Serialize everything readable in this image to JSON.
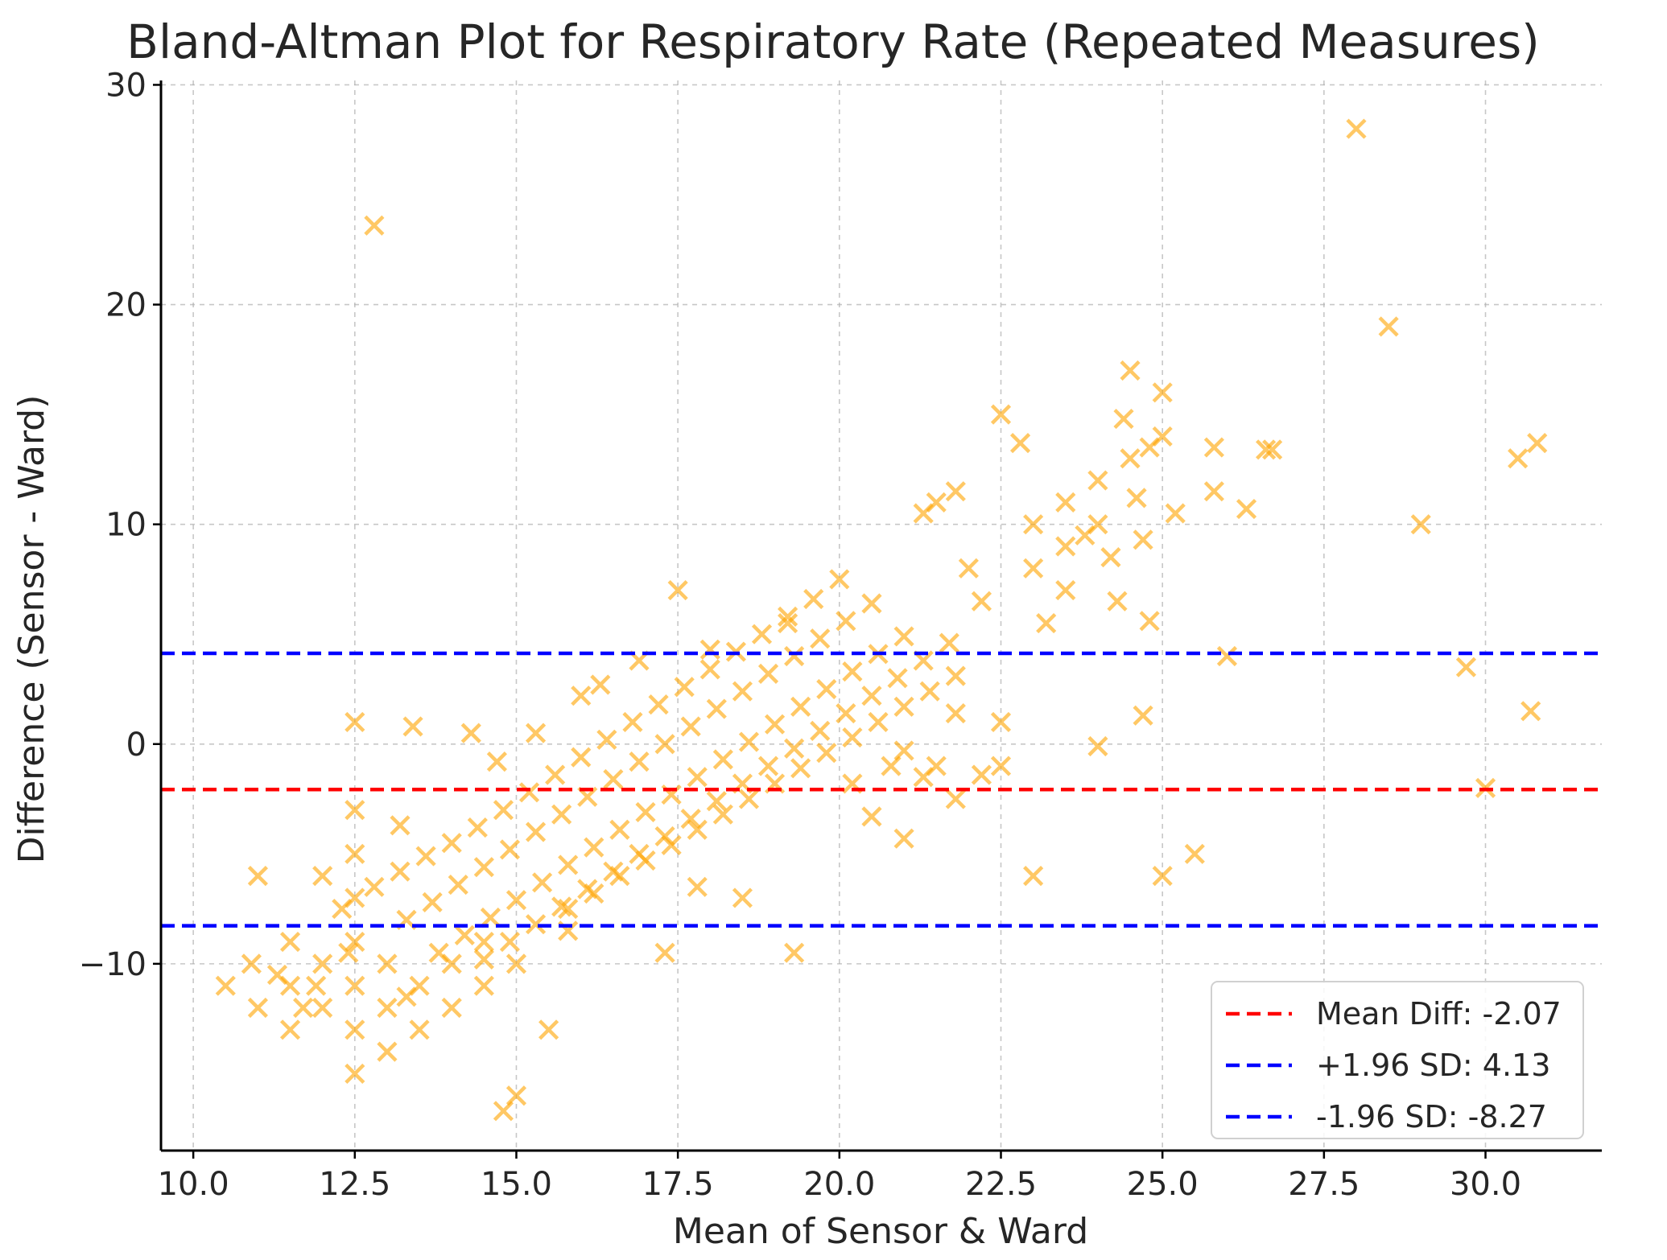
{
  "chart_data": {
    "type": "scatter",
    "title": "Bland-Altman Plot for Respiratory Rate (Repeated Measures)",
    "xlabel": "Mean of Sensor & Ward",
    "ylabel": "Difference (Sensor - Ward)",
    "xlim": [
      9.5,
      31.8
    ],
    "ylim": [
      -18.5,
      30.2
    ],
    "x_ticks": [
      10.0,
      12.5,
      15.0,
      17.5,
      20.0,
      22.5,
      25.0,
      27.5,
      30.0
    ],
    "x_tick_labels": [
      "10.0",
      "12.5",
      "15.0",
      "17.5",
      "20.0",
      "22.5",
      "25.0",
      "27.5",
      "30.0"
    ],
    "y_ticks": [
      -10,
      0,
      10,
      20,
      30
    ],
    "y_tick_labels": [
      "−10",
      "0",
      "10",
      "20",
      "30"
    ],
    "grid": true,
    "marker": "x",
    "marker_color": "#FFA500",
    "reference_lines": [
      {
        "name": "mean-diff",
        "label": "Mean Diff: -2.07",
        "value": -2.07,
        "color": "#ff0000"
      },
      {
        "name": "upper-loa",
        "label": "+1.96 SD: 4.13",
        "value": 4.13,
        "color": "#0000ff"
      },
      {
        "name": "lower-loa",
        "label": "-1.96 SD: -8.27",
        "value": -8.27,
        "color": "#0000ff"
      }
    ],
    "legend_position": "lower-right",
    "scatter_points": [
      [
        10.5,
        -11
      ],
      [
        10.9,
        -10
      ],
      [
        11,
        -6
      ],
      [
        11,
        -12
      ],
      [
        11.3,
        -10.5
      ],
      [
        11.5,
        -9
      ],
      [
        11.5,
        -11
      ],
      [
        11.5,
        -13
      ],
      [
        11.7,
        -12
      ],
      [
        11.9,
        -11
      ],
      [
        12,
        -6
      ],
      [
        12,
        -10
      ],
      [
        12,
        -12
      ],
      [
        12.3,
        -7.5
      ],
      [
        12.4,
        -9.5
      ],
      [
        12.5,
        1
      ],
      [
        12.5,
        -3
      ],
      [
        12.5,
        -5
      ],
      [
        12.5,
        -7
      ],
      [
        12.5,
        -9
      ],
      [
        12.5,
        -11
      ],
      [
        12.5,
        -13
      ],
      [
        12.5,
        -15
      ],
      [
        12.8,
        23.6
      ],
      [
        13,
        -10
      ],
      [
        13,
        -12
      ],
      [
        13,
        -14
      ],
      [
        13.2,
        -3.7
      ],
      [
        13.3,
        -11.5
      ],
      [
        13.4,
        0.8
      ],
      [
        13.5,
        -11
      ],
      [
        13.5,
        -13
      ],
      [
        14,
        -10
      ],
      [
        14,
        -12
      ],
      [
        14.3,
        0.5
      ],
      [
        14.5,
        -9
      ],
      [
        14.5,
        -11
      ],
      [
        14.7,
        -0.8
      ],
      [
        14.8,
        -16.7
      ],
      [
        15,
        -10
      ],
      [
        15,
        -16
      ],
      [
        15.3,
        0.5
      ],
      [
        15.5,
        -13
      ],
      [
        15.8,
        -8.5
      ],
      [
        17.3,
        -9.5
      ],
      [
        17.5,
        7
      ],
      [
        17.8,
        -6.5
      ],
      [
        18.5,
        -7
      ],
      [
        19.3,
        -9.5
      ],
      [
        16,
        2.2
      ],
      [
        16.3,
        2.7
      ],
      [
        16.9,
        3.8
      ],
      [
        18,
        4.3
      ],
      [
        19.2,
        5.5
      ],
      [
        12.8,
        -6.5
      ],
      [
        13.2,
        -5.8
      ],
      [
        13.6,
        -5.1
      ],
      [
        14,
        -4.5
      ],
      [
        14.4,
        -3.8
      ],
      [
        14.8,
        -3
      ],
      [
        15.2,
        -2.2
      ],
      [
        15.6,
        -1.4
      ],
      [
        16,
        -0.6
      ],
      [
        16.4,
        0.2
      ],
      [
        16.8,
        1
      ],
      [
        17.2,
        1.8
      ],
      [
        17.6,
        2.6
      ],
      [
        18,
        3.4
      ],
      [
        18.4,
        4.2
      ],
      [
        18.8,
        5
      ],
      [
        19.2,
        5.8
      ],
      [
        19.6,
        6.6
      ],
      [
        20,
        7.5
      ],
      [
        13.3,
        -8
      ],
      [
        13.7,
        -7.2
      ],
      [
        14.1,
        -6.4
      ],
      [
        14.5,
        -5.6
      ],
      [
        14.9,
        -4.8
      ],
      [
        15.3,
        -4
      ],
      [
        15.7,
        -3.2
      ],
      [
        16.1,
        -2.4
      ],
      [
        16.5,
        -1.6
      ],
      [
        16.9,
        -0.8
      ],
      [
        17.3,
        0
      ],
      [
        17.7,
        0.8
      ],
      [
        18.1,
        1.6
      ],
      [
        18.5,
        2.4
      ],
      [
        18.9,
        3.2
      ],
      [
        19.3,
        4
      ],
      [
        19.7,
        4.8
      ],
      [
        20.1,
        5.6
      ],
      [
        20.5,
        6.4
      ],
      [
        13.8,
        -9.5
      ],
      [
        14.2,
        -8.7
      ],
      [
        14.6,
        -7.9
      ],
      [
        15,
        -7.1
      ],
      [
        15.4,
        -6.3
      ],
      [
        15.8,
        -5.5
      ],
      [
        16.2,
        -4.7
      ],
      [
        16.6,
        -3.9
      ],
      [
        17,
        -3.1
      ],
      [
        17.4,
        -2.3
      ],
      [
        17.8,
        -1.5
      ],
      [
        18.2,
        -0.7
      ],
      [
        18.6,
        0.1
      ],
      [
        19,
        0.9
      ],
      [
        19.4,
        1.7
      ],
      [
        19.8,
        2.5
      ],
      [
        20.2,
        3.3
      ],
      [
        20.6,
        4.1
      ],
      [
        21,
        4.9
      ],
      [
        14.5,
        -9.8
      ],
      [
        14.9,
        -9
      ],
      [
        15.3,
        -8.2
      ],
      [
        15.7,
        -7.4
      ],
      [
        16.1,
        -6.6
      ],
      [
        16.5,
        -5.8
      ],
      [
        16.9,
        -5
      ],
      [
        17.3,
        -4.2
      ],
      [
        17.7,
        -3.4
      ],
      [
        18.1,
        -2.6
      ],
      [
        18.5,
        -1.8
      ],
      [
        18.9,
        -1
      ],
      [
        19.3,
        -0.2
      ],
      [
        19.7,
        0.6
      ],
      [
        20.1,
        1.4
      ],
      [
        20.5,
        2.2
      ],
      [
        20.9,
        3
      ],
      [
        21.3,
        3.8
      ],
      [
        21.7,
        4.6
      ],
      [
        15.8,
        -7.5
      ],
      [
        16.2,
        -6.8
      ],
      [
        16.6,
        -6
      ],
      [
        17,
        -5.3
      ],
      [
        17.4,
        -4.6
      ],
      [
        17.8,
        -3.9
      ],
      [
        18.2,
        -3.2
      ],
      [
        18.6,
        -2.5
      ],
      [
        19,
        -1.8
      ],
      [
        19.4,
        -1.1
      ],
      [
        19.8,
        -0.4
      ],
      [
        20.2,
        0.3
      ],
      [
        20.6,
        1
      ],
      [
        21,
        1.7
      ],
      [
        21.4,
        2.4
      ],
      [
        21.8,
        3.1
      ],
      [
        21.3,
        10.5
      ],
      [
        21.5,
        11
      ],
      [
        21.8,
        11.5
      ],
      [
        22,
        8
      ],
      [
        22.2,
        6.5
      ],
      [
        22.5,
        15
      ],
      [
        22.5,
        1
      ],
      [
        22.5,
        -1
      ],
      [
        22.8,
        13.7
      ],
      [
        23,
        10
      ],
      [
        23,
        8
      ],
      [
        23,
        -6
      ],
      [
        23.2,
        5.5
      ],
      [
        23.5,
        11
      ],
      [
        23.5,
        9
      ],
      [
        23.5,
        7
      ],
      [
        23.8,
        9.5
      ],
      [
        24,
        10
      ],
      [
        24,
        12
      ],
      [
        24,
        -0.1
      ],
      [
        24.2,
        8.5
      ],
      [
        24.3,
        6.5
      ],
      [
        24.4,
        14.8
      ],
      [
        24.5,
        17
      ],
      [
        24.5,
        13
      ],
      [
        24.6,
        11.2
      ],
      [
        24.7,
        9.3
      ],
      [
        24.7,
        1.3
      ],
      [
        24.8,
        13.5
      ],
      [
        24.8,
        5.6
      ],
      [
        25,
        16
      ],
      [
        25,
        14
      ],
      [
        25,
        -6
      ],
      [
        25.2,
        10.5
      ],
      [
        25.5,
        -5
      ],
      [
        25.8,
        13.5
      ],
      [
        25.8,
        11.5
      ],
      [
        26,
        4
      ],
      [
        26.3,
        10.7
      ],
      [
        26.6,
        13.4
      ],
      [
        26.7,
        13.4
      ],
      [
        28,
        28
      ],
      [
        28.5,
        19
      ],
      [
        29,
        10
      ],
      [
        29.7,
        3.5
      ],
      [
        30,
        -2
      ],
      [
        30.5,
        13
      ],
      [
        30.8,
        13.7
      ],
      [
        30.7,
        1.5
      ],
      [
        20.5,
        -3.3
      ],
      [
        20.8,
        -1
      ],
      [
        21,
        -0.3
      ],
      [
        21,
        -4.3
      ],
      [
        21.3,
        -1.5
      ],
      [
        21.5,
        -1
      ],
      [
        21.8,
        -2.5
      ],
      [
        21.8,
        1.4
      ],
      [
        22.2,
        -1.4
      ],
      [
        20.2,
        -1.8
      ]
    ]
  }
}
